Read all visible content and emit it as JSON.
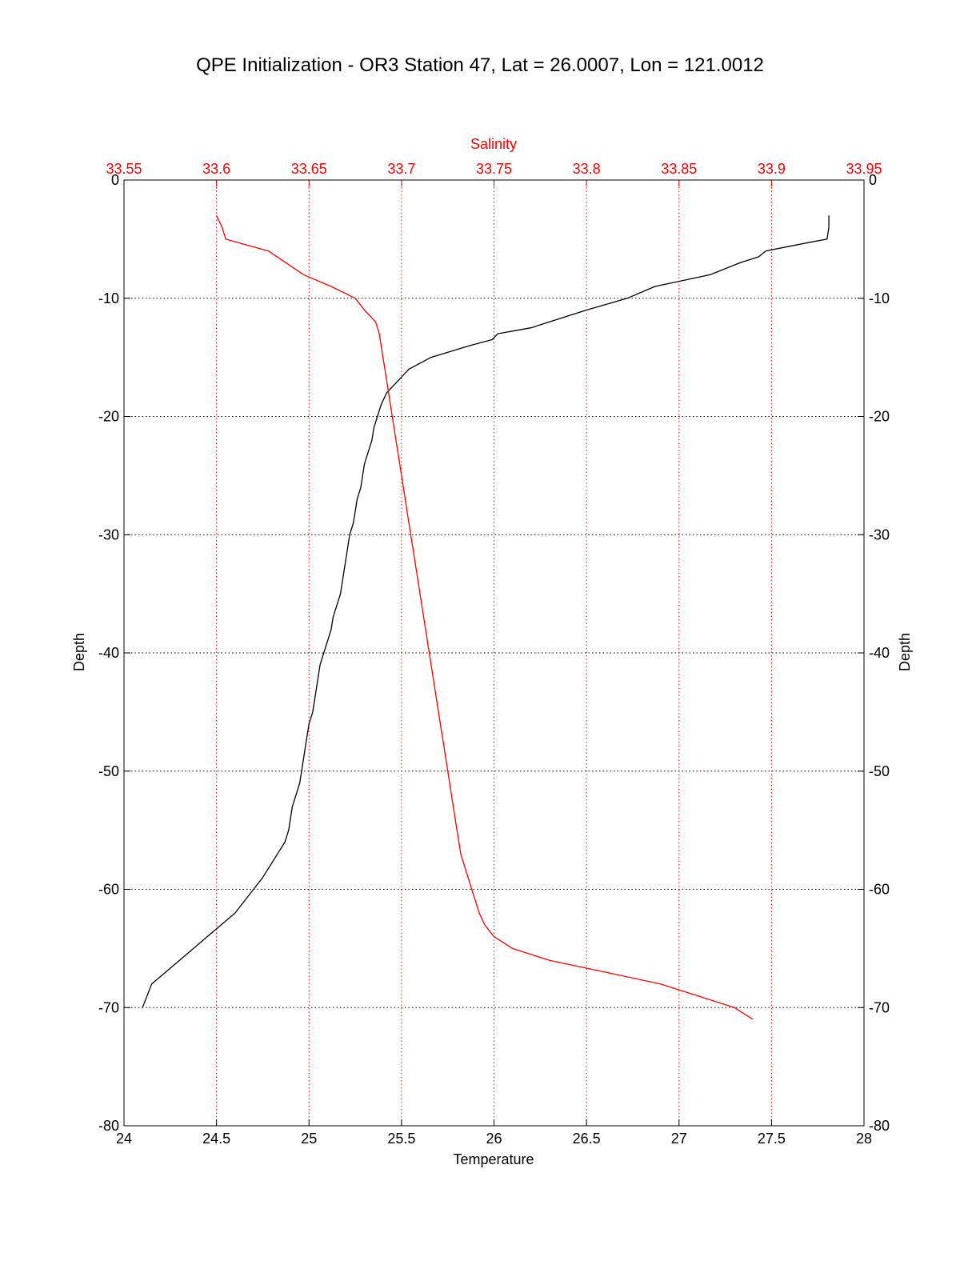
{
  "chart_data": {
    "type": "line",
    "title": "QPE Initialization - OR3 Station 47, Lat = 26.0007, Lon = 121.0012",
    "xlabel": "Temperature",
    "x2label": "Salinity",
    "ylabel": "Depth",
    "y2label": "Depth",
    "xlim": [
      24,
      28
    ],
    "x2lim": [
      33.55,
      33.95
    ],
    "ylim": [
      -80,
      0
    ],
    "x_ticks": [
      "24",
      "24.5",
      "25",
      "25.5",
      "26",
      "26.5",
      "27",
      "27.5",
      "28"
    ],
    "x2_ticks": [
      "33.55",
      "33.6",
      "33.65",
      "33.7",
      "33.75",
      "33.8",
      "33.85",
      "33.9",
      "33.95"
    ],
    "y_ticks": [
      "0",
      "-10",
      "-20",
      "-30",
      "-40",
      "-50",
      "-60",
      "-70",
      "-80"
    ],
    "grid": true,
    "colors": {
      "temperature": "#000000",
      "salinity": "#ff0000",
      "grid_salinity": "#ff0000",
      "grid_depth": "#000000"
    },
    "series": [
      {
        "key": "temperature",
        "axis": "bottom",
        "x": [
          27.81,
          27.81,
          27.8,
          27.73,
          27.6,
          27.47,
          27.43,
          27.33,
          27.17,
          26.87,
          26.72,
          26.5,
          26.3,
          26.2,
          26.02,
          25.99,
          25.87,
          25.66,
          25.54,
          25.48,
          25.42,
          25.39,
          25.37,
          25.35,
          25.34,
          25.32,
          25.3,
          25.29,
          25.28,
          25.26,
          25.25,
          25.24,
          25.22,
          25.21,
          25.2,
          25.19,
          25.18,
          25.17,
          25.15,
          25.13,
          25.12,
          25.1,
          25.08,
          25.06,
          25.05,
          25.04,
          25.03,
          25.02,
          25.0,
          24.99,
          24.98,
          24.97,
          24.96,
          24.95,
          24.93,
          24.91,
          24.9,
          24.89,
          24.87,
          24.83,
          24.79,
          24.75,
          24.7,
          24.6,
          24.45,
          24.3,
          24.15,
          24.1
        ],
        "y": [
          -3,
          -4,
          -5,
          -5.2,
          -5.6,
          -6,
          -6.5,
          -7,
          -8,
          -9,
          -10,
          -11,
          -12,
          -12.5,
          -13,
          -13.5,
          -14,
          -15,
          -16,
          -17,
          -18,
          -19,
          -20,
          -21,
          -22,
          -23,
          -24,
          -25,
          -26,
          -27,
          -28,
          -29,
          -30,
          -31,
          -32,
          -33,
          -34,
          -35,
          -36,
          -37,
          -38,
          -39,
          -40,
          -41,
          -42,
          -43,
          -44,
          -45,
          -46,
          -47,
          -48,
          -49,
          -50,
          -51,
          -52,
          -53,
          -54,
          -55,
          -56,
          -57,
          -58,
          -59,
          -60,
          -62,
          -64,
          -66,
          -68,
          -70
        ]
      },
      {
        "key": "salinity",
        "axis": "top",
        "x": [
          33.6,
          33.603,
          33.605,
          33.628,
          33.647,
          33.662,
          33.675,
          33.68,
          33.686,
          33.688,
          33.689,
          33.69,
          33.691,
          33.692,
          33.693,
          33.694,
          33.695,
          33.696,
          33.697,
          33.698,
          33.699,
          33.7,
          33.701,
          33.702,
          33.703,
          33.704,
          33.705,
          33.706,
          33.707,
          33.708,
          33.709,
          33.71,
          33.711,
          33.712,
          33.713,
          33.714,
          33.715,
          33.716,
          33.717,
          33.718,
          33.719,
          33.72,
          33.721,
          33.722,
          33.723,
          33.724,
          33.725,
          33.726,
          33.727,
          33.728,
          33.729,
          33.73,
          33.731,
          33.732,
          33.734,
          33.736,
          33.738,
          33.74,
          33.742,
          33.745,
          33.75,
          33.76,
          33.78,
          33.81,
          33.84,
          33.86,
          33.88,
          33.89
        ],
        "y": [
          -3,
          -4,
          -5,
          -6,
          -8,
          -9,
          -10,
          -11,
          -12,
          -13,
          -14,
          -15,
          -16,
          -17,
          -18,
          -19,
          -20,
          -21,
          -22,
          -23,
          -24,
          -25,
          -26,
          -27,
          -28,
          -29,
          -30,
          -31,
          -32,
          -33,
          -34,
          -35,
          -36,
          -37,
          -38,
          -39,
          -40,
          -41,
          -42,
          -43,
          -44,
          -45,
          -46,
          -47,
          -48,
          -49,
          -50,
          -51,
          -52,
          -53,
          -54,
          -55,
          -56,
          -57,
          -58,
          -59,
          -60,
          -61,
          -62,
          -63,
          -64,
          -65,
          -66,
          -67,
          -68,
          -69,
          -70,
          -71
        ]
      }
    ]
  }
}
